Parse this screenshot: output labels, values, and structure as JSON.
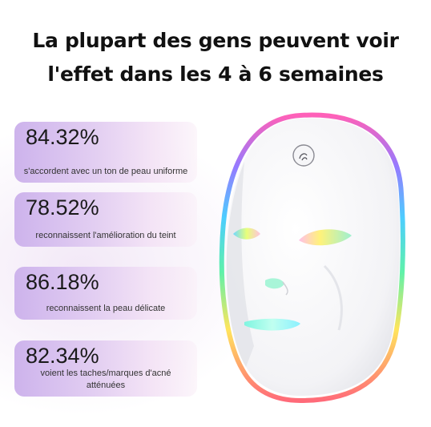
{
  "headline": {
    "line1": "La plupart des gens peuvent voir",
    "line2": "l'effet dans les 4 à 6 semaines"
  },
  "stats": [
    {
      "percent": "84.32%",
      "description": "s'accordent avec un ton de peau uniforme"
    },
    {
      "percent": "78.52%",
      "description": "reconnaissent l'amélioration du teint"
    },
    {
      "percent": "86.18%",
      "description": "reconnaissent la peau délicate"
    },
    {
      "percent": "82.34%",
      "description": "voient les taches/marques d'acné atténuées"
    }
  ],
  "colors": {
    "card_start": "#cdb3ec",
    "card_end": "#f4e4f6",
    "mask_white": "#f7f7f9"
  },
  "image": {
    "icon": "touch-button-icon"
  }
}
